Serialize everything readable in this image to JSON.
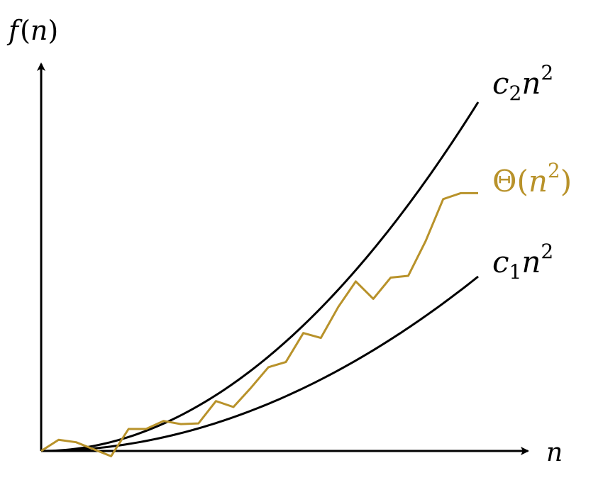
{
  "axes": {
    "y_label": {
      "func": "f",
      "open": "(",
      "var": "n",
      "close": ")"
    },
    "x_label": "n"
  },
  "curves": {
    "upper": {
      "coef": "c",
      "sub": "2",
      "var": "n",
      "exp": "2",
      "color": "#000000"
    },
    "lower": {
      "coef": "c",
      "sub": "1",
      "var": "n",
      "exp": "2",
      "color": "#000000"
    },
    "theta": {
      "symbol": "Θ",
      "open": "(",
      "var": "n",
      "exp": "2",
      "close": ")",
      "color": "#b8922a"
    }
  },
  "chart_data": {
    "type": "line",
    "series": [
      {
        "name": "c₂n²",
        "x": [
          0,
          1
        ],
        "k": 1.0
      },
      {
        "name": "c₁n²",
        "x": [
          0,
          1
        ],
        "k": 0.5
      },
      {
        "name": "Θ(n²)",
        "x": [
          0,
          0.04,
          0.08,
          0.12,
          0.16,
          0.2,
          0.24,
          0.28,
          0.32,
          0.36,
          0.4,
          0.44,
          0.48,
          0.52,
          0.56,
          0.6,
          0.64,
          0.68,
          0.72,
          0.76,
          0.8,
          0.84,
          0.88,
          0.92,
          0.96,
          1.0
        ],
        "y": [
          0.0,
          0.032,
          0.025,
          0.005,
          -0.015,
          0.063,
          0.063,
          0.086,
          0.077,
          0.079,
          0.143,
          0.126,
          0.181,
          0.24,
          0.255,
          0.338,
          0.324,
          0.413,
          0.486,
          0.436,
          0.497,
          0.502,
          0.602,
          0.722,
          0.739,
          0.739
        ]
      }
    ]
  }
}
